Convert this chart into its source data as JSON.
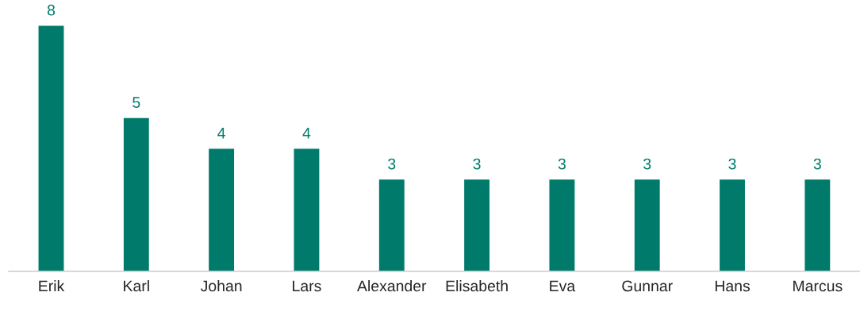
{
  "chart_data": {
    "type": "bar",
    "categories": [
      "Erik",
      "Karl",
      "Johan",
      "Lars",
      "Alexander",
      "Elisabeth",
      "Eva",
      "Gunnar",
      "Hans",
      "Marcus"
    ],
    "values": [
      8,
      5,
      4,
      4,
      3,
      3,
      3,
      3,
      3,
      3
    ],
    "color": "#007b6b",
    "data_labels": true,
    "tick_labels": "x",
    "grid": false,
    "legend": false
  }
}
